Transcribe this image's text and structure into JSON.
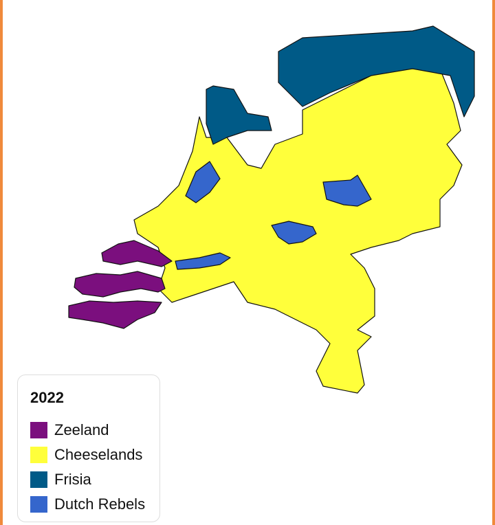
{
  "legend": {
    "title": "2022",
    "items": [
      {
        "label": "Zeeland",
        "color": "#7b0f7e"
      },
      {
        "label": "Cheeselands",
        "color": "#ffff3b"
      },
      {
        "label": "Frisia",
        "color": "#005a87"
      },
      {
        "label": "Dutch Rebels",
        "color": "#3566cc"
      }
    ]
  }
}
